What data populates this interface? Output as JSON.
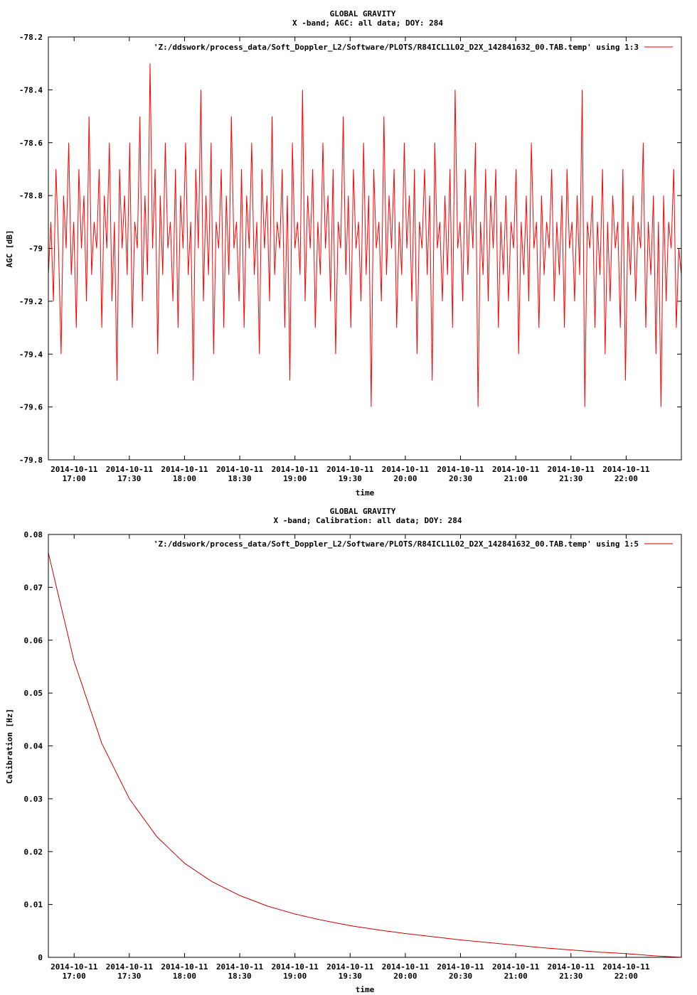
{
  "chart_data": [
    {
      "type": "line",
      "title": "GLOBAL GRAVITY",
      "subtitle": "X -band; AGC: all data; DOY: 284",
      "xlabel": "time",
      "ylabel": "AGC [dB]",
      "ylim": [
        -79.8,
        -78.2
      ],
      "yticks": [
        "-78.2",
        "-78.4",
        "-78.6",
        "-78.8",
        "-79",
        "-79.2",
        "-79.4",
        "-79.6",
        "-79.8"
      ],
      "x_tick_date": "2014-10-11",
      "x_tick_times": [
        "17:00",
        "17:30",
        "18:00",
        "18:30",
        "19:00",
        "19:30",
        "20:00",
        "20:30",
        "21:00",
        "21:30",
        "22:00"
      ],
      "x_range": [
        "2014-10-11 16:46",
        "2014-10-11 22:30"
      ],
      "legend": "'Z:/ddswork/process_data/Soft_Doppler_L2/Software/PLOTS/R84ICL1L02_D2X_142841632_00.TAB.temp' using 1:3",
      "legend_position": "top-right",
      "grid": false,
      "line_color": "#ff0000",
      "series": [
        {
          "values": [
            -79.1,
            -78.9,
            -79.2,
            -78.7,
            -79.0,
            -79.4,
            -78.8,
            -79.0,
            -78.6,
            -79.1,
            -78.9,
            -79.3,
            -78.7,
            -79.0,
            -78.8,
            -79.2,
            -78.5,
            -79.1,
            -78.9,
            -79.0,
            -78.7,
            -79.3,
            -78.8,
            -79.0,
            -78.6,
            -79.2,
            -78.9,
            -79.5,
            -78.7,
            -79.0,
            -78.8,
            -79.1,
            -78.6,
            -79.3,
            -78.9,
            -79.0,
            -78.5,
            -79.2,
            -78.8,
            -79.1,
            -78.3,
            -79.0,
            -78.7,
            -79.4,
            -78.8,
            -79.1,
            -78.6,
            -79.0,
            -78.9,
            -79.2,
            -78.7,
            -79.3,
            -78.8,
            -79.0,
            -78.6,
            -79.1,
            -78.9,
            -79.5,
            -78.7,
            -79.0,
            -78.4,
            -79.2,
            -78.8,
            -79.1,
            -78.6,
            -79.4,
            -78.9,
            -79.0,
            -78.7,
            -79.3,
            -78.8,
            -79.1,
            -78.5,
            -79.0,
            -78.9,
            -79.2,
            -78.7,
            -79.3,
            -78.8,
            -79.0,
            -78.6,
            -79.1,
            -78.9,
            -79.4,
            -78.7,
            -79.0,
            -78.8,
            -79.2,
            -78.5,
            -79.1,
            -78.9,
            -79.0,
            -78.7,
            -79.3,
            -78.8,
            -79.5,
            -78.6,
            -79.0,
            -78.9,
            -79.1,
            -78.4,
            -79.2,
            -78.8,
            -79.0,
            -78.7,
            -79.3,
            -78.9,
            -79.1,
            -78.6,
            -79.0,
            -78.8,
            -79.2,
            -78.7,
            -79.4,
            -78.9,
            -79.0,
            -78.5,
            -79.1,
            -78.8,
            -79.3,
            -78.7,
            -79.0,
            -78.9,
            -79.2,
            -78.6,
            -79.1,
            -78.8,
            -79.6,
            -78.7,
            -79.0,
            -78.9,
            -79.2,
            -78.5,
            -79.1,
            -78.8,
            -79.0,
            -78.7,
            -79.3,
            -78.9,
            -79.1,
            -78.6,
            -79.0,
            -78.8,
            -79.2,
            -78.7,
            -79.4,
            -78.9,
            -79.0,
            -78.7,
            -79.1,
            -78.8,
            -79.5,
            -78.6,
            -79.0,
            -78.9,
            -79.2,
            -78.8,
            -79.1,
            -78.7,
            -79.3,
            -78.4,
            -79.0,
            -78.9,
            -79.2,
            -78.7,
            -79.1,
            -78.8,
            -79.0,
            -78.6,
            -79.6,
            -78.9,
            -79.1,
            -78.7,
            -79.2,
            -78.8,
            -79.0,
            -78.7,
            -79.3,
            -78.9,
            -79.1,
            -78.8,
            -79.2,
            -78.9,
            -79.0,
            -78.7,
            -79.4,
            -78.9,
            -79.1,
            -78.8,
            -79.2,
            -78.6,
            -79.0,
            -78.9,
            -79.3,
            -78.8,
            -79.1,
            -78.9,
            -79.0,
            -78.7,
            -79.2,
            -78.9,
            -79.1,
            -78.8,
            -79.3,
            -78.7,
            -79.0,
            -78.9,
            -79.2,
            -78.8,
            -79.1,
            -78.4,
            -79.6,
            -78.9,
            -79.0,
            -78.8,
            -79.3,
            -78.9,
            -79.1,
            -78.7,
            -79.4,
            -78.9,
            -79.2,
            -78.8,
            -79.0,
            -78.9,
            -79.3,
            -78.7,
            -79.5,
            -78.9,
            -79.1,
            -78.8,
            -79.2,
            -78.9,
            -79.0,
            -78.6,
            -79.3,
            -78.9,
            -79.1,
            -78.8,
            -79.4,
            -78.9,
            -79.6,
            -78.8,
            -79.2,
            -78.9,
            -79.0,
            -78.7,
            -79.3,
            -79.0,
            -79.1
          ]
        }
      ]
    },
    {
      "type": "line",
      "title": "GLOBAL GRAVITY",
      "subtitle": "X -band; Calibration: all data; DOY: 284",
      "xlabel": "time",
      "ylabel": "Calibration [Hz]",
      "ylim": [
        0,
        0.08
      ],
      "yticks": [
        "0.08",
        "0.07",
        "0.06",
        "0.05",
        "0.04",
        "0.03",
        "0.02",
        "0.01",
        "0"
      ],
      "x_tick_date": "2014-10-11",
      "x_tick_times": [
        "17:00",
        "17:30",
        "18:00",
        "18:30",
        "19:00",
        "19:30",
        "20:00",
        "20:30",
        "21:00",
        "21:30",
        "22:00"
      ],
      "x_range": [
        "2014-10-11 16:46",
        "2014-10-11 22:30"
      ],
      "legend": "'Z:/ddswork/process_data/Soft_Doppler_L2/Software/PLOTS/R84ICL1L02_D2X_142841632_00.TAB.temp' using 1:5",
      "legend_position": "top-right",
      "grid": false,
      "line_color": "#cc0000",
      "series": [
        {
          "x": [
            "16:46",
            "17:00",
            "17:15",
            "17:30",
            "17:45",
            "18:00",
            "18:15",
            "18:30",
            "18:45",
            "19:00",
            "19:15",
            "19:30",
            "19:45",
            "20:00",
            "20:15",
            "20:30",
            "20:45",
            "21:00",
            "21:15",
            "21:30",
            "21:45",
            "22:00",
            "22:15",
            "22:30"
          ],
          "values": [
            0.0765,
            0.056,
            0.0405,
            0.03,
            0.0228,
            0.0178,
            0.0143,
            0.0117,
            0.0097,
            0.0082,
            0.007,
            0.006,
            0.0052,
            0.0045,
            0.0039,
            0.0033,
            0.0028,
            0.0023,
            0.0018,
            0.0014,
            0.001,
            0.0007,
            0.0003,
            0.0
          ]
        }
      ]
    }
  ]
}
